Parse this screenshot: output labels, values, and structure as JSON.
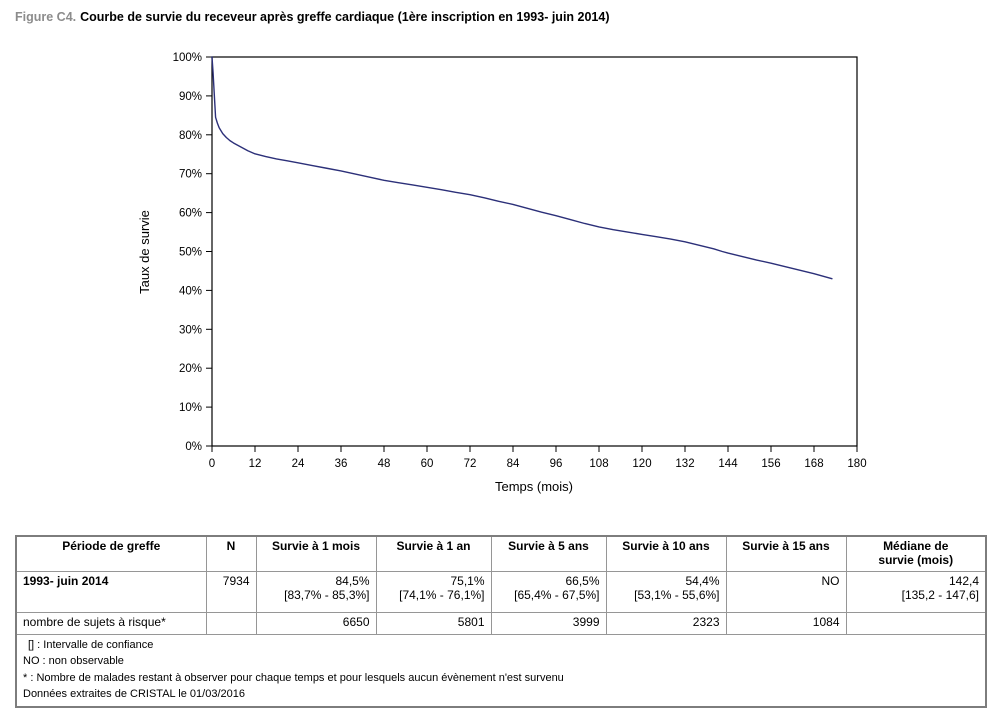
{
  "title": {
    "label": "Figure C4.",
    "caption": "Courbe de survie du receveur après greffe cardiaque (1ère inscription en 1993- juin 2014)",
    "label_color": "#8c8c8c"
  },
  "chart_data": {
    "type": "line",
    "title": "",
    "xlabel": "Temps (mois)",
    "ylabel": "Taux de survie",
    "xlim": [
      0,
      180
    ],
    "ylim": [
      0,
      100
    ],
    "grid": false,
    "frame": true,
    "legend": "none",
    "x_ticks": [
      0,
      12,
      24,
      36,
      48,
      60,
      72,
      84,
      96,
      108,
      120,
      132,
      144,
      156,
      168,
      180
    ],
    "x_tick_labels": [
      "0",
      "12",
      "24",
      "36",
      "48",
      "60",
      "72",
      "84",
      "96",
      "108",
      "120",
      "132",
      "144",
      "156",
      "168",
      "180"
    ],
    "y_ticks": [
      0,
      10,
      20,
      30,
      40,
      50,
      60,
      70,
      80,
      90,
      100
    ],
    "y_tick_labels": [
      "0%",
      "10%",
      "20%",
      "30%",
      "40%",
      "50%",
      "60%",
      "70%",
      "80%",
      "90%",
      "100%"
    ],
    "series": [
      {
        "name": "Survie du receveur après greffe cardiaque",
        "color": "#2c3079",
        "points": [
          [
            0,
            100
          ],
          [
            0.3,
            96
          ],
          [
            0.6,
            91
          ],
          [
            1,
            84.5
          ],
          [
            1.5,
            83
          ],
          [
            2,
            81.8
          ],
          [
            3,
            80.3
          ],
          [
            4,
            79.3
          ],
          [
            5,
            78.5
          ],
          [
            6,
            77.9
          ],
          [
            8,
            76.9
          ],
          [
            10,
            75.9
          ],
          [
            12,
            75.1
          ],
          [
            15,
            74.4
          ],
          [
            18,
            73.8
          ],
          [
            21,
            73.3
          ],
          [
            24,
            72.8
          ],
          [
            28,
            72.1
          ],
          [
            32,
            71.4
          ],
          [
            36,
            70.7
          ],
          [
            40,
            69.9
          ],
          [
            44,
            69.1
          ],
          [
            48,
            68.3
          ],
          [
            52,
            67.7
          ],
          [
            56,
            67.1
          ],
          [
            60,
            66.5
          ],
          [
            64,
            65.9
          ],
          [
            68,
            65.2
          ],
          [
            72,
            64.6
          ],
          [
            76,
            63.8
          ],
          [
            80,
            62.9
          ],
          [
            84,
            62.1
          ],
          [
            88,
            61.1
          ],
          [
            92,
            60.1
          ],
          [
            96,
            59.2
          ],
          [
            100,
            58.2
          ],
          [
            104,
            57.2
          ],
          [
            108,
            56.3
          ],
          [
            112,
            55.6
          ],
          [
            116,
            55
          ],
          [
            120,
            54.4
          ],
          [
            124,
            53.8
          ],
          [
            128,
            53.2
          ],
          [
            132,
            52.5
          ],
          [
            136,
            51.6
          ],
          [
            140,
            50.7
          ],
          [
            142.4,
            50
          ],
          [
            144,
            49.6
          ],
          [
            148,
            48.7
          ],
          [
            152,
            47.8
          ],
          [
            156,
            47
          ],
          [
            160,
            46.1
          ],
          [
            164,
            45.2
          ],
          [
            168,
            44.3
          ],
          [
            173,
            43
          ]
        ]
      }
    ]
  },
  "table": {
    "headers": {
      "periode": "Période de greffe",
      "n": "N",
      "s1mois": "Survie à 1 mois",
      "s1an": "Survie à 1 an",
      "s5ans": "Survie à 5 ans",
      "s10ans": "Survie à 10 ans",
      "s15ans": "Survie à 15 ans",
      "mediane": "Médiane de\nsurvie (mois)"
    },
    "main_row": {
      "label": "1993- juin 2014",
      "n": "7934",
      "s1mois": [
        "84,5%",
        "[83,7% - 85,3%]"
      ],
      "s1an": [
        "75,1%",
        "[74,1% - 76,1%]"
      ],
      "s5ans": [
        "66,5%",
        "[65,4% - 67,5%]"
      ],
      "s10ans": [
        "54,4%",
        "[53,1% - 55,6%]"
      ],
      "s15ans": [
        "NO",
        ""
      ],
      "mediane": [
        "142,4",
        "[135,2 - 147,6]"
      ]
    },
    "risk_row": {
      "label": "nombre de sujets à risque*",
      "n": "",
      "s1mois": "6650",
      "s1an": "5801",
      "s5ans": "3999",
      "s10ans": "2323",
      "s15ans": "1084",
      "mediane": ""
    },
    "footnotes": [
      "[] : Intervalle de confiance",
      "NO : non observable",
      "* : Nombre de malades restant à observer pour chaque temps et pour lesquels aucun évènement n'est survenu",
      "Données extraites de CRISTAL le 01/03/2016"
    ]
  }
}
